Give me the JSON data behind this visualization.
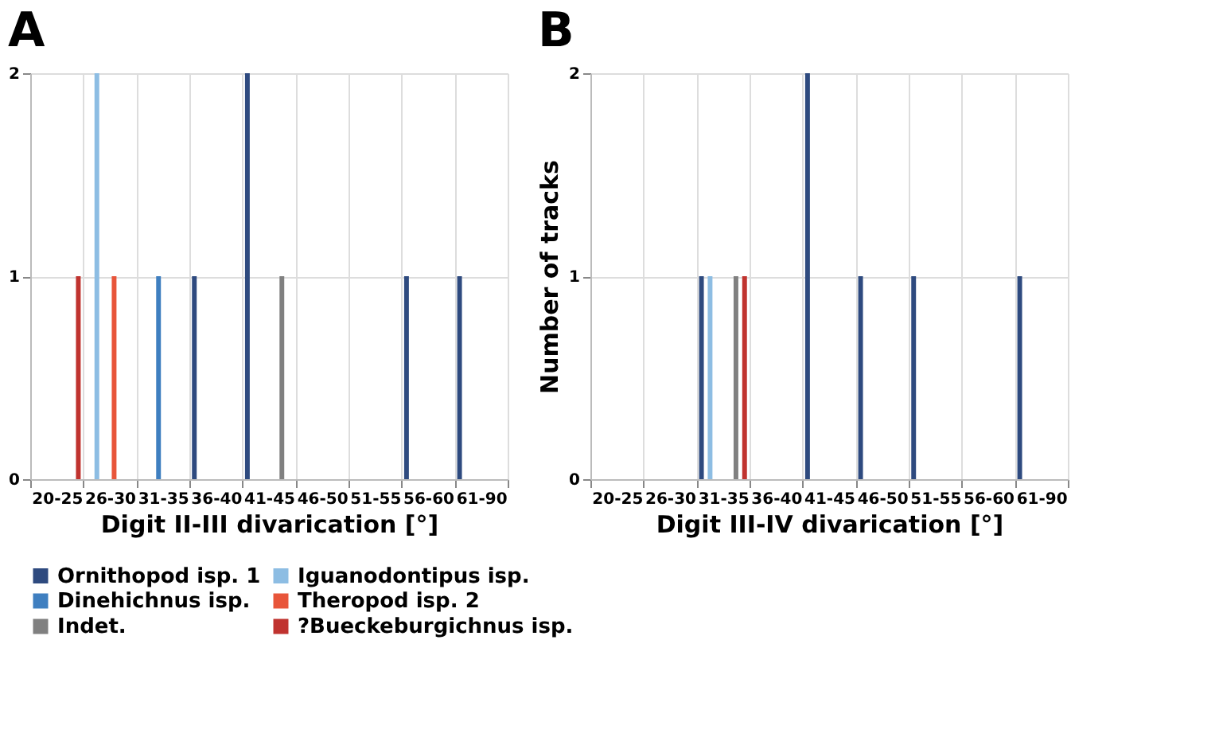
{
  "chart_data": [
    {
      "type": "bar",
      "title": "A",
      "xlabel": "Digit II-III divarication [°]",
      "categories": [
        "20-25",
        "26-30",
        "31-35",
        "36-40",
        "41-45",
        "46-50",
        "51-55",
        "56-60",
        "61-90"
      ],
      "ylim": [
        0,
        2
      ],
      "yticks": [
        0,
        1,
        2
      ],
      "grid": true,
      "legend": "bottom",
      "series": [
        {
          "name": "Ornithopod isp. 1",
          "color": "#2e4a7f",
          "values": [
            0,
            0,
            0,
            1,
            2,
            0,
            0,
            1,
            1
          ]
        },
        {
          "name": "Iguanodontipus isp.",
          "color": "#8dbde3",
          "values": [
            0,
            2,
            0,
            0,
            0,
            0,
            0,
            0,
            0
          ]
        },
        {
          "name": "Dinehichnus isp.",
          "color": "#3f7fc0",
          "values": [
            0,
            0,
            1,
            0,
            0,
            0,
            0,
            0,
            0
          ]
        },
        {
          "name": "Theropod isp. 2",
          "color": "#e8553a",
          "values": [
            0,
            1,
            0,
            0,
            0,
            0,
            0,
            0,
            0
          ]
        },
        {
          "name": "Indet.",
          "color": "#808080",
          "values": [
            0,
            0,
            0,
            0,
            1,
            0,
            0,
            0,
            0
          ]
        },
        {
          "name": "?Bueckeburgichnus isp.",
          "color": "#c0332f",
          "values": [
            1,
            0,
            0,
            0,
            0,
            0,
            0,
            0,
            0
          ]
        }
      ]
    },
    {
      "type": "bar",
      "title": "B",
      "xlabel": "Digit III-IV divarication [°]",
      "ylabel": "Number of tracks",
      "categories": [
        "20-25",
        "26-30",
        "31-35",
        "36-40",
        "41-45",
        "46-50",
        "51-55",
        "56-60",
        "61-90"
      ],
      "ylim": [
        0,
        2
      ],
      "yticks": [
        0,
        1,
        2
      ],
      "grid": true,
      "legend": "bottom",
      "series": [
        {
          "name": "Ornithopod isp. 1",
          "color": "#2e4a7f",
          "values": [
            0,
            0,
            1,
            0,
            2,
            1,
            1,
            0,
            1
          ]
        },
        {
          "name": "Iguanodontipus isp.",
          "color": "#8dbde3",
          "values": [
            0,
            0,
            1,
            0,
            0,
            0,
            0,
            0,
            0
          ]
        },
        {
          "name": "Dinehichnus isp.",
          "color": "#3f7fc0",
          "values": [
            0,
            0,
            0,
            0,
            0,
            0,
            0,
            0,
            0
          ]
        },
        {
          "name": "Theropod isp. 2",
          "color": "#e8553a",
          "values": [
            0,
            0,
            0,
            0,
            0,
            0,
            0,
            0,
            0
          ]
        },
        {
          "name": "Indet.",
          "color": "#808080",
          "values": [
            0,
            0,
            1,
            0,
            0,
            0,
            0,
            0,
            0
          ]
        },
        {
          "name": "?Bueckeburgichnus isp.",
          "color": "#c0332f",
          "values": [
            0,
            0,
            1,
            0,
            0,
            0,
            0,
            0,
            0
          ]
        }
      ]
    }
  ]
}
